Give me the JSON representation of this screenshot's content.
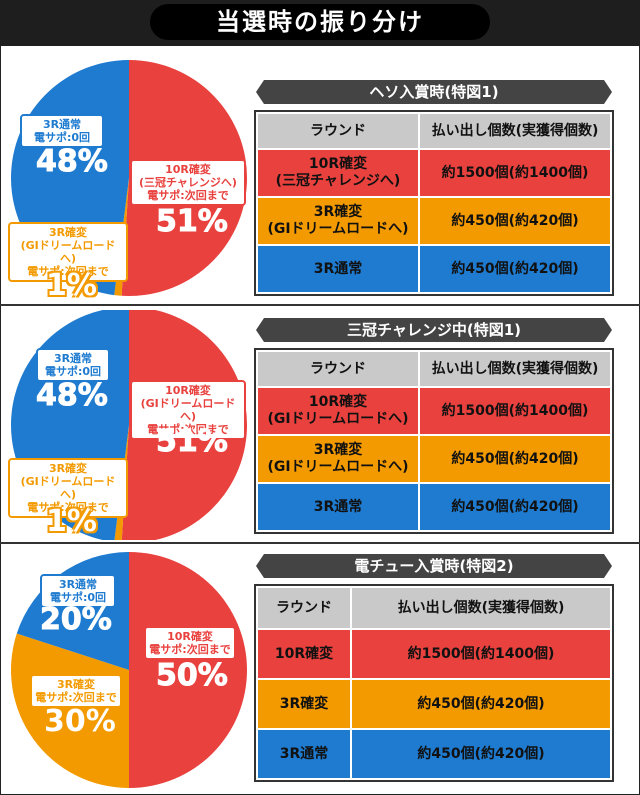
{
  "title": "当選時の振り分け",
  "colors": {
    "red": "#e8413e",
    "orange": "#f39a00",
    "blue": "#1e7bd0"
  },
  "sections": [
    {
      "banner": "ヘソ入賞時(特図1)",
      "pie": {
        "red": {
          "l1": "10R確変",
          "l2": "(三冠チャレンジへ)",
          "l3": "電サポ:次回まで",
          "pct": "51%",
          "value": 51
        },
        "orange": {
          "l1": "3R確変",
          "l2": "(GIドリームロードへ)",
          "l3": "電サポ:次回まで",
          "pct": "1%",
          "value": 1
        },
        "blue": {
          "l1": "3R通常",
          "l2": "電サポ:0回",
          "pct": "48%",
          "value": 48
        }
      },
      "table": {
        "headers": [
          "ラウンド",
          "払い出し個数(実獲得個数)"
        ],
        "rows": [
          {
            "round1": "10R確変",
            "round2": "(三冠チャレンジへ)",
            "payout": "約1500個(約1400個)"
          },
          {
            "round1": "3R確変",
            "round2": "(GIドリームロードへ)",
            "payout": "約450個(約420個)"
          },
          {
            "round1": "3R通常",
            "round2": "",
            "payout": "約450個(約420個)"
          }
        ]
      }
    },
    {
      "banner": "三冠チャレンジ中(特図1)",
      "pie": {
        "red": {
          "l1": "10R確変",
          "l2": "(GIドリームロードへ)",
          "l3": "電サポ:次回まで",
          "pct": "51%",
          "value": 51
        },
        "orange": {
          "l1": "3R確変",
          "l2": "(GIドリームロードへ)",
          "l3": "電サポ:次回まで",
          "pct": "1%",
          "value": 1
        },
        "blue": {
          "l1": "3R通常",
          "l2": "電サポ:0回",
          "pct": "48%",
          "value": 48
        }
      },
      "table": {
        "headers": [
          "ラウンド",
          "払い出し個数(実獲得個数)"
        ],
        "rows": [
          {
            "round1": "10R確変",
            "round2": "(GIドリームロードへ)",
            "payout": "約1500個(約1400個)"
          },
          {
            "round1": "3R確変",
            "round2": "(GIドリームロードへ)",
            "payout": "約450個(約420個)"
          },
          {
            "round1": "3R通常",
            "round2": "",
            "payout": "約450個(約420個)"
          }
        ]
      }
    },
    {
      "banner": "電チュー入賞時(特図2)",
      "pie": {
        "red": {
          "l1": "10R確変",
          "l2": "電サポ:次回まで",
          "pct": "50%",
          "value": 50
        },
        "orange": {
          "l1": "3R確変",
          "l2": "電サポ:次回まで",
          "pct": "30%",
          "value": 30
        },
        "blue": {
          "l1": "3R通常",
          "l2": "電サポ:0回",
          "pct": "20%",
          "value": 20
        }
      },
      "table": {
        "headers": [
          "ラウンド",
          "払い出し個数(実獲得個数)"
        ],
        "rows": [
          {
            "round1": "10R確変",
            "payout": "約1500個(約1400個)"
          },
          {
            "round1": "3R確変",
            "payout": "約450個(約420個)"
          },
          {
            "round1": "3R通常",
            "payout": "約450個(約420個)"
          }
        ]
      }
    }
  ]
}
